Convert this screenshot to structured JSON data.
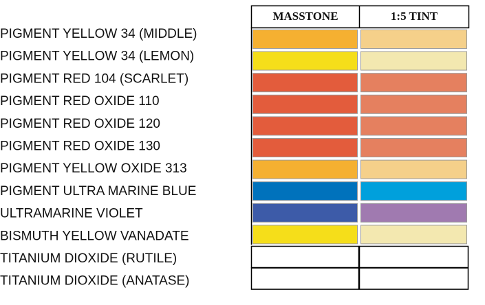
{
  "table": {
    "headers": [
      "MASSTONE",
      "1:5 TINT"
    ],
    "rows": [
      {
        "name": "PIGMENT YELLOW 34 (MIDDLE)",
        "masstone": "#f5b031",
        "tint": "#f5d08a"
      },
      {
        "name": "PIGMENT YELLOW 34 (LEMON)",
        "masstone": "#f5de1a",
        "tint": "#f3e8b0"
      },
      {
        "name": "PIGMENT RED 104 (SCARLET)",
        "masstone": "#e35c3c",
        "tint": "#e5805f"
      },
      {
        "name": "PIGMENT RED OXIDE 110",
        "masstone": "#e35c3c",
        "tint": "#e5805f"
      },
      {
        "name": "PIGMENT RED OXIDE 120",
        "masstone": "#e35c3c",
        "tint": "#e5805f"
      },
      {
        "name": "PIGMENT RED OXIDE 130",
        "masstone": "#e35c3c",
        "tint": "#e5805f"
      },
      {
        "name": "PIGMENT YELLOW OXIDE 313",
        "masstone": "#f5b031",
        "tint": "#f5d08a"
      },
      {
        "name": "PIGMENT ULTRA MARINE BLUE",
        "masstone": "#0072bc",
        "tint": "#00a0dc"
      },
      {
        "name": "ULTRAMARINE VIOLET",
        "masstone": "#3d5ba8",
        "tint": "#a07ab0"
      },
      {
        "name": "BISMUTH YELLOW VANADATE",
        "masstone": "#f5de1a",
        "tint": "#f3e8b0"
      },
      {
        "name": "TITANIUM DIOXIDE (RUTILE)",
        "masstone": "#ffffff",
        "tint": "#ffffff"
      },
      {
        "name": "TITANIUM DIOXIDE (ANATASE)",
        "masstone": "#ffffff",
        "tint": "#ffffff"
      }
    ]
  }
}
